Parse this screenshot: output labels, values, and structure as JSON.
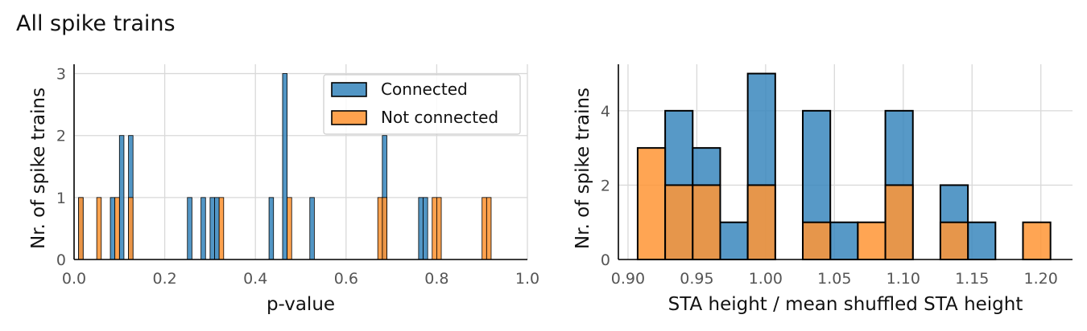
{
  "figure_title": "All spike trains",
  "colors": {
    "connected": "#3a87bd",
    "not_connected": "#ff9535",
    "grid": "#d9d9d9",
    "edge": "#000000"
  },
  "chart_data": [
    {
      "type": "bar",
      "title": "",
      "xlabel": "p-value",
      "ylabel": "Nr. of spike trains",
      "xlim": [
        0.0,
        1.0
      ],
      "ylim": [
        0,
        3.15
      ],
      "xticks": [
        0.0,
        0.2,
        0.4,
        0.6,
        0.8,
        1.0
      ],
      "xtick_labels": [
        "0.0",
        "0.2",
        "0.4",
        "0.6",
        "0.8",
        "1.0"
      ],
      "yticks": [
        0,
        1,
        2,
        3
      ],
      "ytick_labels": [
        "0",
        "1",
        "2",
        "3"
      ],
      "bin_width": 0.01,
      "grid": true,
      "legend_position": "top-right",
      "series": [
        {
          "name": "Connected",
          "bins": [
            [
              0.01,
              1
            ],
            [
              0.08,
              1
            ],
            [
              0.1,
              2
            ],
            [
              0.12,
              2
            ],
            [
              0.25,
              1
            ],
            [
              0.28,
              1
            ],
            [
              0.3,
              1
            ],
            [
              0.31,
              1
            ],
            [
              0.43,
              1
            ],
            [
              0.46,
              3
            ],
            [
              0.52,
              1
            ],
            [
              0.68,
              2
            ],
            [
              0.76,
              1
            ],
            [
              0.77,
              1
            ]
          ]
        },
        {
          "name": "Not connected",
          "bins": [
            [
              0.01,
              1
            ],
            [
              0.05,
              1
            ],
            [
              0.09,
              1
            ],
            [
              0.12,
              1
            ],
            [
              0.32,
              1
            ],
            [
              0.47,
              1
            ],
            [
              0.67,
              1
            ],
            [
              0.68,
              1
            ],
            [
              0.79,
              1
            ],
            [
              0.8,
              1
            ],
            [
              0.9,
              1
            ],
            [
              0.91,
              1
            ]
          ]
        }
      ]
    },
    {
      "type": "bar",
      "title": "",
      "xlabel": "STA height / mean shuffled STA height",
      "ylabel": "Nr. of spike trains",
      "xlim": [
        0.893,
        1.223
      ],
      "ylim": [
        0,
        5.25
      ],
      "xticks": [
        0.9,
        0.95,
        1.0,
        1.05,
        1.1,
        1.15,
        1.2
      ],
      "xtick_labels": [
        "0.90",
        "0.95",
        "1.00",
        "1.05",
        "1.10",
        "1.15",
        "1.20"
      ],
      "yticks": [
        0,
        2,
        4
      ],
      "ytick_labels": [
        "0",
        "2",
        "4"
      ],
      "bin_width": 0.02,
      "grid": true,
      "series": [
        {
          "name": "Connected",
          "bins": [
            [
              0.927,
              4
            ],
            [
              0.947,
              3
            ],
            [
              0.967,
              1
            ],
            [
              0.987,
              5
            ],
            [
              1.027,
              4
            ],
            [
              1.047,
              1
            ],
            [
              1.087,
              4
            ],
            [
              1.127,
              2
            ],
            [
              1.147,
              1
            ]
          ]
        },
        {
          "name": "Not connected",
          "bins": [
            [
              0.907,
              3
            ],
            [
              0.927,
              2
            ],
            [
              0.947,
              2
            ],
            [
              0.987,
              2
            ],
            [
              1.027,
              1
            ],
            [
              1.067,
              1
            ],
            [
              1.087,
              2
            ],
            [
              1.127,
              1
            ],
            [
              1.187,
              1
            ]
          ]
        }
      ]
    }
  ]
}
